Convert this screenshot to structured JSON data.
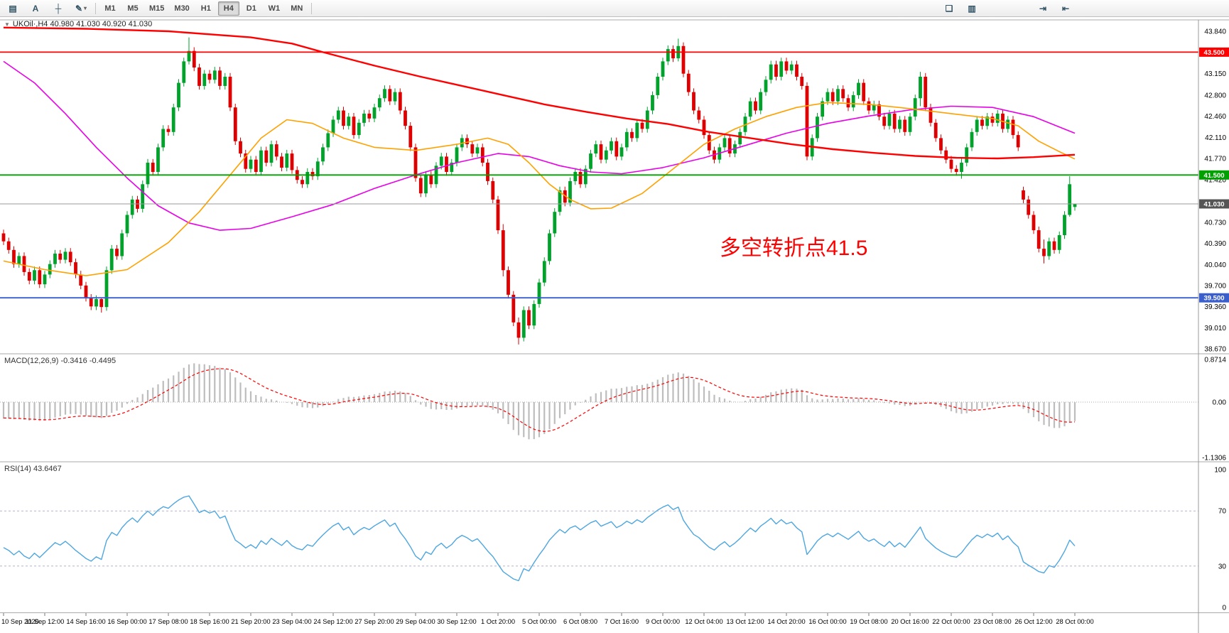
{
  "toolbar": {
    "left_buttons": [
      {
        "name": "chart-window",
        "glyph": "▤"
      },
      {
        "name": "text-tool",
        "glyph": "A"
      },
      {
        "name": "crosshair-tool",
        "glyph": "┼"
      },
      {
        "name": "draw-tools",
        "glyph": "✎",
        "chevron": "▾"
      }
    ],
    "timeframes": [
      "M1",
      "M5",
      "M15",
      "M30",
      "H1",
      "H4",
      "D1",
      "W1",
      "MN"
    ],
    "active_timeframe": "H4",
    "mid_buttons": [
      {
        "name": "tile-windows",
        "glyph": "❏"
      },
      {
        "name": "indicators-list",
        "glyph": "▥"
      }
    ],
    "right_buttons": [
      {
        "name": "auto-scroll",
        "glyph": "⇥"
      },
      {
        "name": "chart-shift",
        "glyph": "⇤"
      }
    ]
  },
  "chart": {
    "expand_icon": "▼",
    "title": "UKOil·,H4 40.980 41.030 40.920 41.030",
    "annotation": {
      "text": "多空转折点41.5",
      "color": "#FF0000"
    },
    "hlines": [
      {
        "price": 43.5,
        "label": "43.500",
        "color": "#FF0000"
      },
      {
        "price": 41.5,
        "label": "41.500",
        "color": "#00A000"
      },
      {
        "price": 39.5,
        "label": "39.500",
        "color": "#3A5FCD"
      }
    ],
    "current_price": {
      "price": 41.03,
      "label": "41.030",
      "color": "#555555"
    },
    "price_ticks": [
      43.84,
      43.15,
      42.8,
      42.46,
      42.11,
      41.77,
      41.42,
      40.73,
      40.39,
      40.04,
      39.7,
      39.36,
      39.01,
      38.67
    ]
  },
  "chart_data": {
    "type": "candlestick",
    "symbol": "UKOil",
    "timeframe": "H4",
    "first_open": 40.55,
    "closes": [
      40.42,
      40.28,
      40.05,
      40.18,
      39.92,
      39.78,
      39.95,
      39.72,
      39.88,
      40.05,
      40.22,
      40.12,
      40.25,
      40.08,
      39.88,
      39.7,
      39.5,
      39.36,
      39.48,
      39.35,
      39.95,
      40.3,
      40.18,
      40.55,
      40.85,
      41.1,
      40.95,
      41.35,
      41.7,
      41.55,
      41.95,
      42.25,
      42.2,
      42.6,
      43.0,
      43.35,
      43.52,
      43.25,
      42.95,
      43.15,
      43.05,
      43.2,
      42.95,
      43.1,
      42.6,
      42.05,
      41.85,
      41.6,
      41.75,
      41.55,
      41.9,
      41.7,
      42.0,
      41.8,
      41.62,
      41.85,
      41.58,
      41.42,
      41.35,
      41.55,
      41.48,
      41.72,
      41.95,
      42.18,
      42.4,
      42.55,
      42.3,
      42.45,
      42.15,
      42.35,
      42.5,
      42.42,
      42.6,
      42.75,
      42.9,
      42.7,
      42.85,
      42.55,
      42.3,
      41.95,
      41.45,
      41.2,
      41.5,
      41.35,
      41.65,
      41.8,
      41.55,
      41.7,
      41.95,
      42.1,
      42.0,
      41.85,
      41.95,
      41.7,
      41.4,
      41.1,
      40.6,
      39.95,
      39.55,
      39.1,
      38.85,
      39.3,
      39.05,
      39.4,
      39.75,
      40.1,
      40.55,
      40.9,
      41.25,
      41.05,
      41.4,
      41.55,
      41.35,
      41.6,
      41.85,
      42.0,
      41.75,
      41.9,
      42.05,
      41.8,
      41.95,
      42.2,
      42.1,
      42.35,
      42.25,
      42.55,
      42.8,
      43.1,
      43.35,
      43.55,
      43.4,
      43.6,
      43.15,
      42.85,
      42.55,
      42.4,
      42.15,
      41.9,
      41.75,
      41.95,
      42.1,
      41.85,
      42.0,
      42.2,
      42.45,
      42.7,
      42.55,
      42.85,
      43.05,
      43.3,
      43.1,
      43.35,
      43.2,
      43.3,
      43.1,
      42.95,
      41.8,
      42.1,
      42.45,
      42.7,
      42.85,
      42.7,
      42.9,
      42.75,
      42.6,
      42.8,
      43.0,
      42.7,
      42.55,
      42.65,
      42.45,
      42.3,
      42.5,
      42.25,
      42.4,
      42.2,
      42.45,
      42.75,
      43.1,
      42.6,
      42.35,
      42.1,
      41.9,
      41.75,
      41.6,
      41.55,
      41.7,
      41.95,
      42.2,
      42.4,
      42.3,
      42.45,
      42.35,
      42.5,
      42.25,
      42.4,
      42.15,
      41.95,
      41.1,
      40.85,
      40.6,
      40.3,
      40.18,
      40.42,
      40.28,
      40.52,
      40.85,
      41.35,
      41.03
    ],
    "open_overrides": {
      "198": 41.25,
      "208": 40.98
    },
    "wick": 0.06,
    "spikes": {
      "19": [
        39.5,
        39.26
      ],
      "36": [
        43.74,
        43.3
      ],
      "97": [
        40.7,
        39.85
      ],
      "100": [
        39.18,
        38.74
      ],
      "131": [
        43.72,
        43.35
      ],
      "178": [
        43.18,
        42.62
      ],
      "186": [
        41.78,
        41.44
      ],
      "202": [
        40.45,
        40.06
      ],
      "207": [
        41.48,
        40.82
      ],
      "208": [
        41.03,
        40.92
      ]
    },
    "x_labels": [
      "10 Sep 2020",
      "11 Sep 12:00",
      "14 Sep 16:00",
      "16 Sep 00:00",
      "17 Sep 08:00",
      "18 Sep 16:00",
      "21 Sep 20:00",
      "23 Sep 04:00",
      "24 Sep 12:00",
      "27 Sep 20:00",
      "29 Sep 04:00",
      "30 Sep 12:00",
      "1 Oct 20:00",
      "5 Oct 00:00",
      "6 Oct 08:00",
      "7 Oct 16:00",
      "9 Oct 00:00",
      "12 Oct 04:00",
      "13 Oct 12:00",
      "14 Oct 20:00",
      "16 Oct 00:00",
      "19 Oct 08:00",
      "20 Oct 16:00",
      "22 Oct 00:00",
      "23 Oct 08:00",
      "26 Oct 12:00",
      "28 Oct 00:00"
    ],
    "label_every": 8,
    "ma_lines": [
      {
        "name": "ma-slow-magenta",
        "color": "#E800E8",
        "width": 1.6,
        "points": [
          [
            0,
            43.35
          ],
          [
            6,
            43.0
          ],
          [
            12,
            42.5
          ],
          [
            18,
            41.95
          ],
          [
            24,
            41.45
          ],
          [
            30,
            41.0
          ],
          [
            36,
            40.72
          ],
          [
            42,
            40.6
          ],
          [
            48,
            40.63
          ],
          [
            56,
            40.82
          ],
          [
            64,
            41.02
          ],
          [
            72,
            41.28
          ],
          [
            80,
            41.5
          ],
          [
            88,
            41.7
          ],
          [
            96,
            41.85
          ],
          [
            102,
            41.8
          ],
          [
            108,
            41.65
          ],
          [
            114,
            41.55
          ],
          [
            120,
            41.52
          ],
          [
            128,
            41.62
          ],
          [
            136,
            41.78
          ],
          [
            144,
            41.98
          ],
          [
            152,
            42.18
          ],
          [
            160,
            42.34
          ],
          [
            168,
            42.46
          ],
          [
            176,
            42.56
          ],
          [
            184,
            42.62
          ],
          [
            192,
            42.6
          ],
          [
            200,
            42.45
          ],
          [
            208,
            42.18
          ]
        ]
      },
      {
        "name": "ma-mid-orange",
        "color": "#FFA100",
        "width": 1.6,
        "points": [
          [
            0,
            40.1
          ],
          [
            8,
            39.96
          ],
          [
            16,
            39.86
          ],
          [
            24,
            39.96
          ],
          [
            32,
            40.4
          ],
          [
            38,
            40.9
          ],
          [
            44,
            41.5
          ],
          [
            50,
            42.1
          ],
          [
            55,
            42.4
          ],
          [
            60,
            42.34
          ],
          [
            66,
            42.1
          ],
          [
            72,
            41.95
          ],
          [
            80,
            41.9
          ],
          [
            88,
            42.0
          ],
          [
            94,
            42.1
          ],
          [
            98,
            42.0
          ],
          [
            102,
            41.7
          ],
          [
            106,
            41.35
          ],
          [
            110,
            41.1
          ],
          [
            114,
            40.95
          ],
          [
            118,
            40.96
          ],
          [
            124,
            41.2
          ],
          [
            130,
            41.6
          ],
          [
            136,
            42.0
          ],
          [
            142,
            42.25
          ],
          [
            148,
            42.45
          ],
          [
            154,
            42.6
          ],
          [
            160,
            42.68
          ],
          [
            168,
            42.65
          ],
          [
            176,
            42.58
          ],
          [
            184,
            42.5
          ],
          [
            192,
            42.42
          ],
          [
            197,
            42.3
          ],
          [
            201,
            42.05
          ],
          [
            205,
            41.88
          ],
          [
            208,
            41.76
          ]
        ]
      },
      {
        "name": "ma-long-red",
        "color": "#FF0000",
        "width": 2.4,
        "points": [
          [
            0,
            43.9
          ],
          [
            16,
            43.88
          ],
          [
            32,
            43.84
          ],
          [
            48,
            43.74
          ],
          [
            56,
            43.64
          ],
          [
            62,
            43.5
          ],
          [
            72,
            43.28
          ],
          [
            81,
            43.1
          ],
          [
            89,
            42.95
          ],
          [
            97,
            42.8
          ],
          [
            105,
            42.65
          ],
          [
            113,
            42.53
          ],
          [
            121,
            42.42
          ],
          [
            129,
            42.33
          ],
          [
            137,
            42.2
          ],
          [
            145,
            42.1
          ],
          [
            153,
            42.0
          ],
          [
            161,
            41.92
          ],
          [
            169,
            41.86
          ],
          [
            177,
            41.81
          ],
          [
            185,
            41.78
          ],
          [
            193,
            41.77
          ],
          [
            200,
            41.79
          ],
          [
            208,
            41.83
          ]
        ]
      }
    ],
    "colors": {
      "up": "#00A22B",
      "down": "#DE0000",
      "macd_hist": "#BDBDBD",
      "macd_signal": "#FF0000",
      "rsi": "#4DA6E0"
    }
  },
  "macd": {
    "title_text": "MACD(12,26,9) -0.3416 -0.4495",
    "fast": 12,
    "slow": 26,
    "signal": 9,
    "axis": [
      0.8714,
      0,
      -1.1306
    ],
    "seed": {
      "fast": 40.6,
      "slow": 40.95,
      "signal": -0.32
    }
  },
  "rsi": {
    "title_text": "RSI(14) 43.6467",
    "period": 14,
    "axis": [
      100,
      70,
      30,
      0
    ],
    "levels": [
      70,
      30
    ],
    "seed": {
      "avg_gain": 0.1,
      "avg_loss": 0.12
    }
  }
}
